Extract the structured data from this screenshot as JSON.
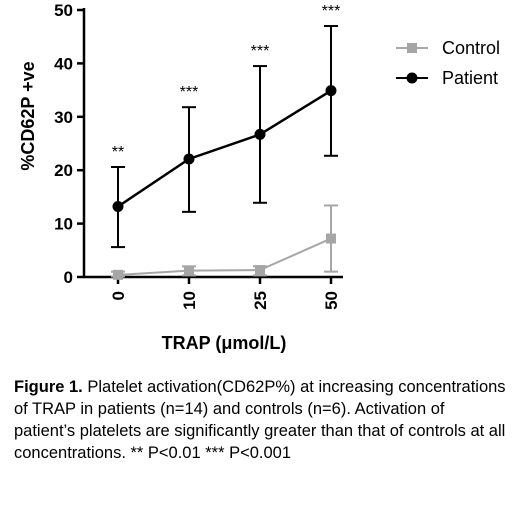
{
  "chart_data": {
    "type": "line",
    "categories": [
      "0",
      "10",
      "25",
      "50"
    ],
    "ylabel": "%CD62P +ve",
    "xlabel": "TRAP (μmol/L)",
    "ylim": [
      0,
      50
    ],
    "yticks": [
      "0",
      "10",
      "20",
      "30",
      "40",
      "50"
    ],
    "legend_position": "top-right",
    "series": [
      {
        "name": "Control",
        "color": "#a6a6a6",
        "marker": "square",
        "values": [
          0.4,
          1.2,
          1.3,
          7.2
        ],
        "err_lower": [
          0.1,
          0.3,
          0.3,
          1.0
        ],
        "err_upper": [
          1.0,
          2.0,
          2.0,
          13.4
        ]
      },
      {
        "name": "Patient",
        "color": "#000000",
        "marker": "circle",
        "values": [
          13.2,
          22.1,
          26.7,
          34.9
        ],
        "err_lower": [
          5.6,
          12.2,
          13.9,
          22.7
        ],
        "err_upper": [
          20.6,
          31.8,
          39.5,
          47.0
        ]
      }
    ],
    "significance": [
      "**",
      "***",
      "***",
      "***"
    ]
  },
  "caption": {
    "label": "Figure 1.",
    "text": " Platelet activation(CD62P%) at increasing concentrations of TRAP in patients (n=14) and controls (n=6). Activation of patient’s platelets are significantly greater than that of controls at all concentrations.  **  P<0.01 *** P<0.001"
  }
}
